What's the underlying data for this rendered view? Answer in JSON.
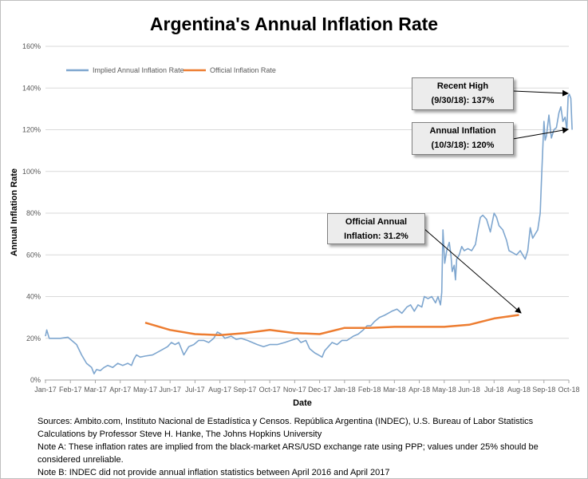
{
  "chart_data": {
    "type": "line",
    "title": "Argentina's Annual Inflation Rate",
    "xlabel": "Date",
    "ylabel": "Annual Inflation Rate",
    "ylim": [
      0,
      160
    ],
    "y_ticks": [
      "0%",
      "20%",
      "40%",
      "60%",
      "80%",
      "100%",
      "120%",
      "140%",
      "160%"
    ],
    "x_ticks": [
      "Jan-17",
      "Feb-17",
      "Mar-17",
      "Apr-17",
      "May-17",
      "Jun-17",
      "Jul-17",
      "Aug-17",
      "Sep-17",
      "Oct-17",
      "Nov-17",
      "Dec-17",
      "Jan-18",
      "Feb-18",
      "Mar-18",
      "Apr-18",
      "May-18",
      "Jun-18",
      "Jul-18",
      "Aug-18",
      "Sep-18",
      "Oct-18"
    ],
    "grid": true,
    "legend_position": "top-left",
    "series": [
      {
        "name": "Implied Annual Inflation Rate",
        "color": "#7ea6cf",
        "points": [
          [
            0.0,
            21
          ],
          [
            0.05,
            24
          ],
          [
            0.15,
            20
          ],
          [
            0.6,
            20
          ],
          [
            0.9,
            20.5
          ],
          [
            1.05,
            19
          ],
          [
            1.25,
            17
          ],
          [
            1.45,
            12
          ],
          [
            1.65,
            8
          ],
          [
            1.85,
            6
          ],
          [
            1.95,
            3
          ],
          [
            2.05,
            5
          ],
          [
            2.2,
            4.5
          ],
          [
            2.35,
            6
          ],
          [
            2.5,
            7
          ],
          [
            2.7,
            6
          ],
          [
            2.9,
            8
          ],
          [
            3.1,
            7
          ],
          [
            3.3,
            8
          ],
          [
            3.45,
            7
          ],
          [
            3.55,
            10
          ],
          [
            3.65,
            12
          ],
          [
            3.8,
            11
          ],
          [
            4.0,
            11.5
          ],
          [
            4.3,
            12
          ],
          [
            4.6,
            14
          ],
          [
            4.9,
            16
          ],
          [
            5.05,
            18
          ],
          [
            5.2,
            17
          ],
          [
            5.35,
            18
          ],
          [
            5.55,
            12
          ],
          [
            5.75,
            16
          ],
          [
            5.95,
            17
          ],
          [
            6.15,
            19
          ],
          [
            6.35,
            19
          ],
          [
            6.55,
            18
          ],
          [
            6.75,
            20
          ],
          [
            6.9,
            23
          ],
          [
            7.05,
            22
          ],
          [
            7.2,
            20
          ],
          [
            7.45,
            21
          ],
          [
            7.65,
            19.5
          ],
          [
            7.85,
            20
          ],
          [
            8.1,
            19
          ],
          [
            8.3,
            18
          ],
          [
            8.5,
            17
          ],
          [
            8.75,
            16
          ],
          [
            9.0,
            17
          ],
          [
            9.3,
            17
          ],
          [
            9.6,
            18
          ],
          [
            9.85,
            19
          ],
          [
            10.1,
            20
          ],
          [
            10.25,
            18
          ],
          [
            10.45,
            19
          ],
          [
            10.6,
            15
          ],
          [
            10.8,
            13
          ],
          [
            10.95,
            12
          ],
          [
            11.1,
            11
          ],
          [
            11.2,
            14
          ],
          [
            11.35,
            16
          ],
          [
            11.5,
            18
          ],
          [
            11.7,
            17
          ],
          [
            11.9,
            19
          ],
          [
            12.1,
            19
          ],
          [
            12.35,
            21
          ],
          [
            12.55,
            22
          ],
          [
            12.75,
            24
          ],
          [
            12.9,
            26
          ],
          [
            13.05,
            26
          ],
          [
            13.2,
            28
          ],
          [
            13.4,
            30
          ],
          [
            13.6,
            31
          ],
          [
            13.75,
            32
          ],
          [
            13.9,
            33
          ],
          [
            14.1,
            34
          ],
          [
            14.3,
            32
          ],
          [
            14.5,
            35
          ],
          [
            14.65,
            36
          ],
          [
            14.8,
            33
          ],
          [
            14.95,
            36
          ],
          [
            15.1,
            35
          ],
          [
            15.2,
            40
          ],
          [
            15.35,
            39
          ],
          [
            15.5,
            40
          ],
          [
            15.65,
            37
          ],
          [
            15.75,
            40
          ],
          [
            15.85,
            36
          ],
          [
            15.9,
            42
          ],
          [
            15.95,
            72
          ],
          [
            16.02,
            56
          ],
          [
            16.1,
            62
          ],
          [
            16.2,
            66
          ],
          [
            16.27,
            60
          ],
          [
            16.32,
            52
          ],
          [
            16.4,
            55
          ],
          [
            16.45,
            48
          ],
          [
            16.5,
            58
          ],
          [
            16.6,
            60
          ],
          [
            16.7,
            64
          ],
          [
            16.8,
            62
          ],
          [
            16.95,
            63
          ],
          [
            17.1,
            62
          ],
          [
            17.25,
            65
          ],
          [
            17.35,
            72
          ],
          [
            17.45,
            78
          ],
          [
            17.55,
            79
          ],
          [
            17.7,
            77
          ],
          [
            17.85,
            71
          ],
          [
            18.0,
            80
          ],
          [
            18.1,
            78
          ],
          [
            18.2,
            74
          ],
          [
            18.35,
            72
          ],
          [
            18.5,
            67
          ],
          [
            18.6,
            62
          ],
          [
            18.75,
            61
          ],
          [
            18.9,
            60
          ],
          [
            19.05,
            62
          ],
          [
            19.15,
            60
          ],
          [
            19.25,
            58
          ],
          [
            19.35,
            62
          ],
          [
            19.45,
            73
          ],
          [
            19.55,
            68
          ],
          [
            19.65,
            70
          ],
          [
            19.75,
            72
          ],
          [
            19.85,
            80
          ],
          [
            19.9,
            95
          ],
          [
            19.95,
            110
          ],
          [
            20.0,
            124
          ],
          [
            20.05,
            115
          ],
          [
            20.1,
            117
          ],
          [
            20.2,
            127
          ],
          [
            20.3,
            116
          ],
          [
            20.4,
            120
          ],
          [
            20.5,
            121
          ],
          [
            20.6,
            128
          ],
          [
            20.68,
            131
          ],
          [
            20.76,
            124
          ],
          [
            20.85,
            126
          ],
          [
            20.92,
            120
          ],
          [
            20.97,
            136
          ],
          [
            21.02,
            137
          ],
          [
            21.08,
            135
          ],
          [
            21.13,
            120
          ]
        ]
      },
      {
        "name": "Official Inflation Rate",
        "color": "#ed7d31",
        "points": [
          [
            4.0,
            27.5
          ],
          [
            5.0,
            24
          ],
          [
            6.0,
            22
          ],
          [
            7.0,
            21.5
          ],
          [
            8.0,
            22.5
          ],
          [
            9.0,
            24
          ],
          [
            10.0,
            22.5
          ],
          [
            11.0,
            22
          ],
          [
            12.0,
            25
          ],
          [
            13.0,
            25
          ],
          [
            14.0,
            25.5
          ],
          [
            15.0,
            25.5
          ],
          [
            16.0,
            25.5
          ],
          [
            17.0,
            26.5
          ],
          [
            18.0,
            29.5
          ],
          [
            19.0,
            31.2
          ]
        ]
      }
    ],
    "annotations": [
      {
        "line1": "Recent High",
        "line2": "(9/30/18): 137%"
      },
      {
        "line1": "Annual Inflation",
        "line2": "(10/3/18): 120%"
      },
      {
        "line1": "Official Annual",
        "line2": "Inflation: 31.2%"
      }
    ]
  },
  "notes": [
    "Sources: Ambito.com, Instituto Nacional de Estadística y Censos. República Argentina (INDEC), U.S. Bureau of Labor Statistics",
    "Calculations by Professor Steve H. Hanke, The Johns Hopkins University",
    "Note A: These inflation rates are implied from the black-market ARS/USD exchange rate using PPP; values under 25% should be",
    "considered unreliable.",
    "Note B: INDEC did not provide annual inflation statistics between April 2016 and April 2017"
  ]
}
